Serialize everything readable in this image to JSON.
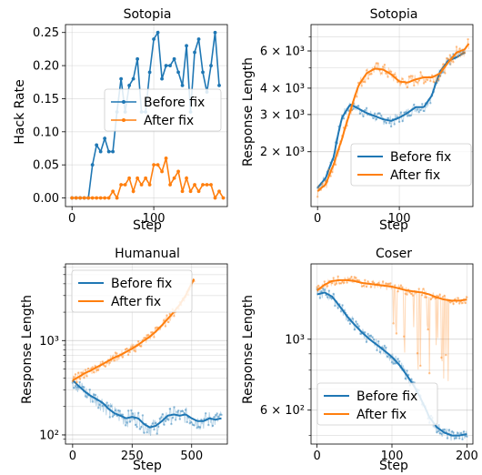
{
  "colors": {
    "before": "#1f77b4",
    "after": "#ff7f0e"
  },
  "chart_data": [
    {
      "type": "line",
      "title": "Sotopia",
      "xlabel": "Step",
      "ylabel": "Hack Rate",
      "xlim": [
        -8,
        190
      ],
      "ylim": [
        -0.013,
        0.262
      ],
      "xticks": [
        {
          "v": 0,
          "label": "0"
        },
        {
          "v": 100,
          "label": "100"
        }
      ],
      "yticks": [
        {
          "v": 0.0,
          "label": "0.00"
        },
        {
          "v": 0.05,
          "label": "0.05"
        },
        {
          "v": 0.1,
          "label": "0.10"
        },
        {
          "v": 0.15,
          "label": "0.15"
        },
        {
          "v": 0.2,
          "label": "0.20"
        },
        {
          "v": 0.25,
          "label": "0.25"
        }
      ],
      "legend": {
        "placement": "center-right",
        "entries": [
          "Before fix",
          "After fix"
        ]
      },
      "series": [
        {
          "name": "Before fix",
          "x": [
            0,
            5,
            10,
            15,
            20,
            25,
            30,
            35,
            40,
            45,
            50,
            55,
            60,
            65,
            70,
            75,
            80,
            85,
            90,
            95,
            100,
            105,
            110,
            115,
            120,
            125,
            130,
            135,
            140,
            145,
            150,
            155,
            160,
            165,
            170,
            175,
            180
          ],
          "y": [
            0,
            0,
            0,
            0,
            0,
            0.05,
            0.08,
            0.07,
            0.09,
            0.07,
            0.07,
            0.13,
            0.18,
            0.13,
            0.17,
            0.18,
            0.21,
            0.13,
            0.13,
            0.19,
            0.24,
            0.25,
            0.18,
            0.2,
            0.2,
            0.21,
            0.19,
            0.17,
            0.23,
            0.13,
            0.22,
            0.24,
            0.19,
            0.16,
            0.2,
            0.25,
            0.17
          ]
        },
        {
          "name": "After fix",
          "x": [
            0,
            5,
            10,
            15,
            20,
            25,
            30,
            35,
            40,
            45,
            50,
            55,
            60,
            65,
            70,
            75,
            80,
            85,
            90,
            95,
            100,
            105,
            110,
            115,
            120,
            125,
            130,
            135,
            140,
            145,
            150,
            155,
            160,
            165,
            170,
            175,
            180,
            185
          ],
          "y": [
            0,
            0,
            0,
            0,
            0,
            0,
            0,
            0,
            0,
            0,
            0.01,
            0,
            0.02,
            0.02,
            0.03,
            0.01,
            0.03,
            0.02,
            0.03,
            0.02,
            0.05,
            0.05,
            0.04,
            0.06,
            0.02,
            0.03,
            0.04,
            0.01,
            0.03,
            0.01,
            0.02,
            0.01,
            0.02,
            0.02,
            0.02,
            0,
            0.01,
            0
          ]
        }
      ]
    },
    {
      "type": "line",
      "title": "Sotopia",
      "xlabel": "Step",
      "ylabel": "Response Length",
      "yscale": "log",
      "xlim": [
        -8,
        190
      ],
      "ylim": [
        1100,
        8000
      ],
      "xticks": [
        {
          "v": 0,
          "label": "0"
        },
        {
          "v": 100,
          "label": "100"
        }
      ],
      "yticks": [
        {
          "v": 2000,
          "label": "2 × 10³"
        },
        {
          "v": 3000,
          "label": "3 × 10³"
        },
        {
          "v": 4000,
          "label": "4 × 10³"
        },
        {
          "v": 6000,
          "label": "6 × 10³"
        }
      ],
      "legend": {
        "placement": "lower-right",
        "entries": [
          "Before fix",
          "After fix"
        ]
      },
      "series": [
        {
          "name": "Before fix",
          "raw_noise": 0.06,
          "x": [
            0,
            10,
            20,
            30,
            40,
            50,
            60,
            70,
            80,
            90,
            100,
            110,
            120,
            130,
            140,
            150,
            160,
            170,
            180
          ],
          "y": [
            1350,
            1500,
            1900,
            2900,
            3350,
            3200,
            3050,
            2950,
            2850,
            2800,
            2900,
            3050,
            3250,
            3250,
            3700,
            4800,
            5400,
            5600,
            5900
          ]
        },
        {
          "name": "After fix",
          "raw_noise": 0.07,
          "x": [
            0,
            10,
            20,
            30,
            40,
            50,
            60,
            70,
            80,
            90,
            100,
            110,
            120,
            130,
            140,
            150,
            160,
            170,
            180,
            185
          ],
          "y": [
            1300,
            1400,
            1750,
            2300,
            3100,
            4100,
            4700,
            4950,
            4900,
            4650,
            4300,
            4250,
            4400,
            4500,
            4500,
            4700,
            5300,
            5900,
            6100,
            6500
          ]
        }
      ]
    },
    {
      "type": "line",
      "title": "Humanual",
      "xlabel": "Step",
      "ylabel": "Response Length",
      "yscale": "log",
      "xlim": [
        -30,
        650
      ],
      "ylim": [
        80,
        6500
      ],
      "xticks": [
        {
          "v": 0,
          "label": "0"
        },
        {
          "v": 250,
          "label": "250"
        },
        {
          "v": 500,
          "label": "500"
        }
      ],
      "yticks": [
        {
          "v": 100,
          "label": "10²"
        },
        {
          "v": 1000,
          "label": "10³"
        }
      ],
      "legend": {
        "placement": "upper-left",
        "entries": [
          "Before fix",
          "After fix"
        ]
      },
      "series": [
        {
          "name": "Before fix",
          "raw_noise": 0.2,
          "x": [
            0,
            25,
            50,
            75,
            100,
            125,
            150,
            175,
            200,
            225,
            250,
            275,
            300,
            325,
            350,
            375,
            400,
            425,
            450,
            475,
            500,
            525,
            550,
            575,
            600,
            625
          ],
          "y": [
            380,
            330,
            290,
            260,
            240,
            220,
            190,
            170,
            160,
            150,
            155,
            150,
            130,
            120,
            125,
            140,
            160,
            165,
            160,
            165,
            150,
            140,
            140,
            150,
            145,
            150
          ]
        },
        {
          "name": "After fix",
          "raw_noise": 0.12,
          "x": [
            0,
            25,
            50,
            75,
            100,
            125,
            150,
            175,
            200,
            225,
            250,
            275,
            300,
            325,
            350,
            375,
            400,
            425,
            450,
            475,
            500,
            510
          ],
          "y": [
            380,
            410,
            450,
            480,
            520,
            560,
            610,
            660,
            700,
            760,
            820,
            900,
            1000,
            1100,
            1250,
            1450,
            1700,
            2000,
            2400,
            3000,
            4000,
            4500
          ]
        }
      ]
    },
    {
      "type": "line",
      "title": "Coser",
      "xlabel": "Step",
      "ylabel": "Response Length",
      "yscale": "log",
      "xlim": [
        -8,
        208
      ],
      "ylim": [
        470,
        1720
      ],
      "xticks": [
        {
          "v": 0,
          "label": "0"
        },
        {
          "v": 100,
          "label": "100"
        },
        {
          "v": 200,
          "label": "200"
        }
      ],
      "yticks": [
        {
          "v": 600,
          "label": "6 × 10²"
        },
        {
          "v": 1000,
          "label": "10³"
        }
      ],
      "legend": {
        "placement": "lower-left",
        "entries": [
          "Before fix",
          "After fix"
        ]
      },
      "series": [
        {
          "name": "Before fix",
          "raw_noise": 0.04,
          "x": [
            0,
            10,
            20,
            30,
            40,
            50,
            60,
            70,
            80,
            90,
            100,
            110,
            120,
            130,
            140,
            150,
            160,
            170,
            180,
            190,
            200
          ],
          "y": [
            1380,
            1400,
            1360,
            1270,
            1180,
            1110,
            1050,
            1000,
            960,
            920,
            880,
            830,
            770,
            710,
            640,
            570,
            530,
            510,
            500,
            500,
            505
          ]
        },
        {
          "name": "After fix",
          "raw_noise": 0.03,
          "x": [
            0,
            10,
            20,
            30,
            40,
            50,
            60,
            70,
            80,
            90,
            100,
            110,
            120,
            130,
            140,
            150,
            160,
            170,
            180,
            190,
            200
          ],
          "y": [
            1420,
            1480,
            1520,
            1530,
            1530,
            1520,
            1500,
            1490,
            1480,
            1470,
            1460,
            1440,
            1420,
            1410,
            1400,
            1380,
            1350,
            1330,
            1320,
            1320,
            1330
          ]
        }
      ]
    }
  ]
}
